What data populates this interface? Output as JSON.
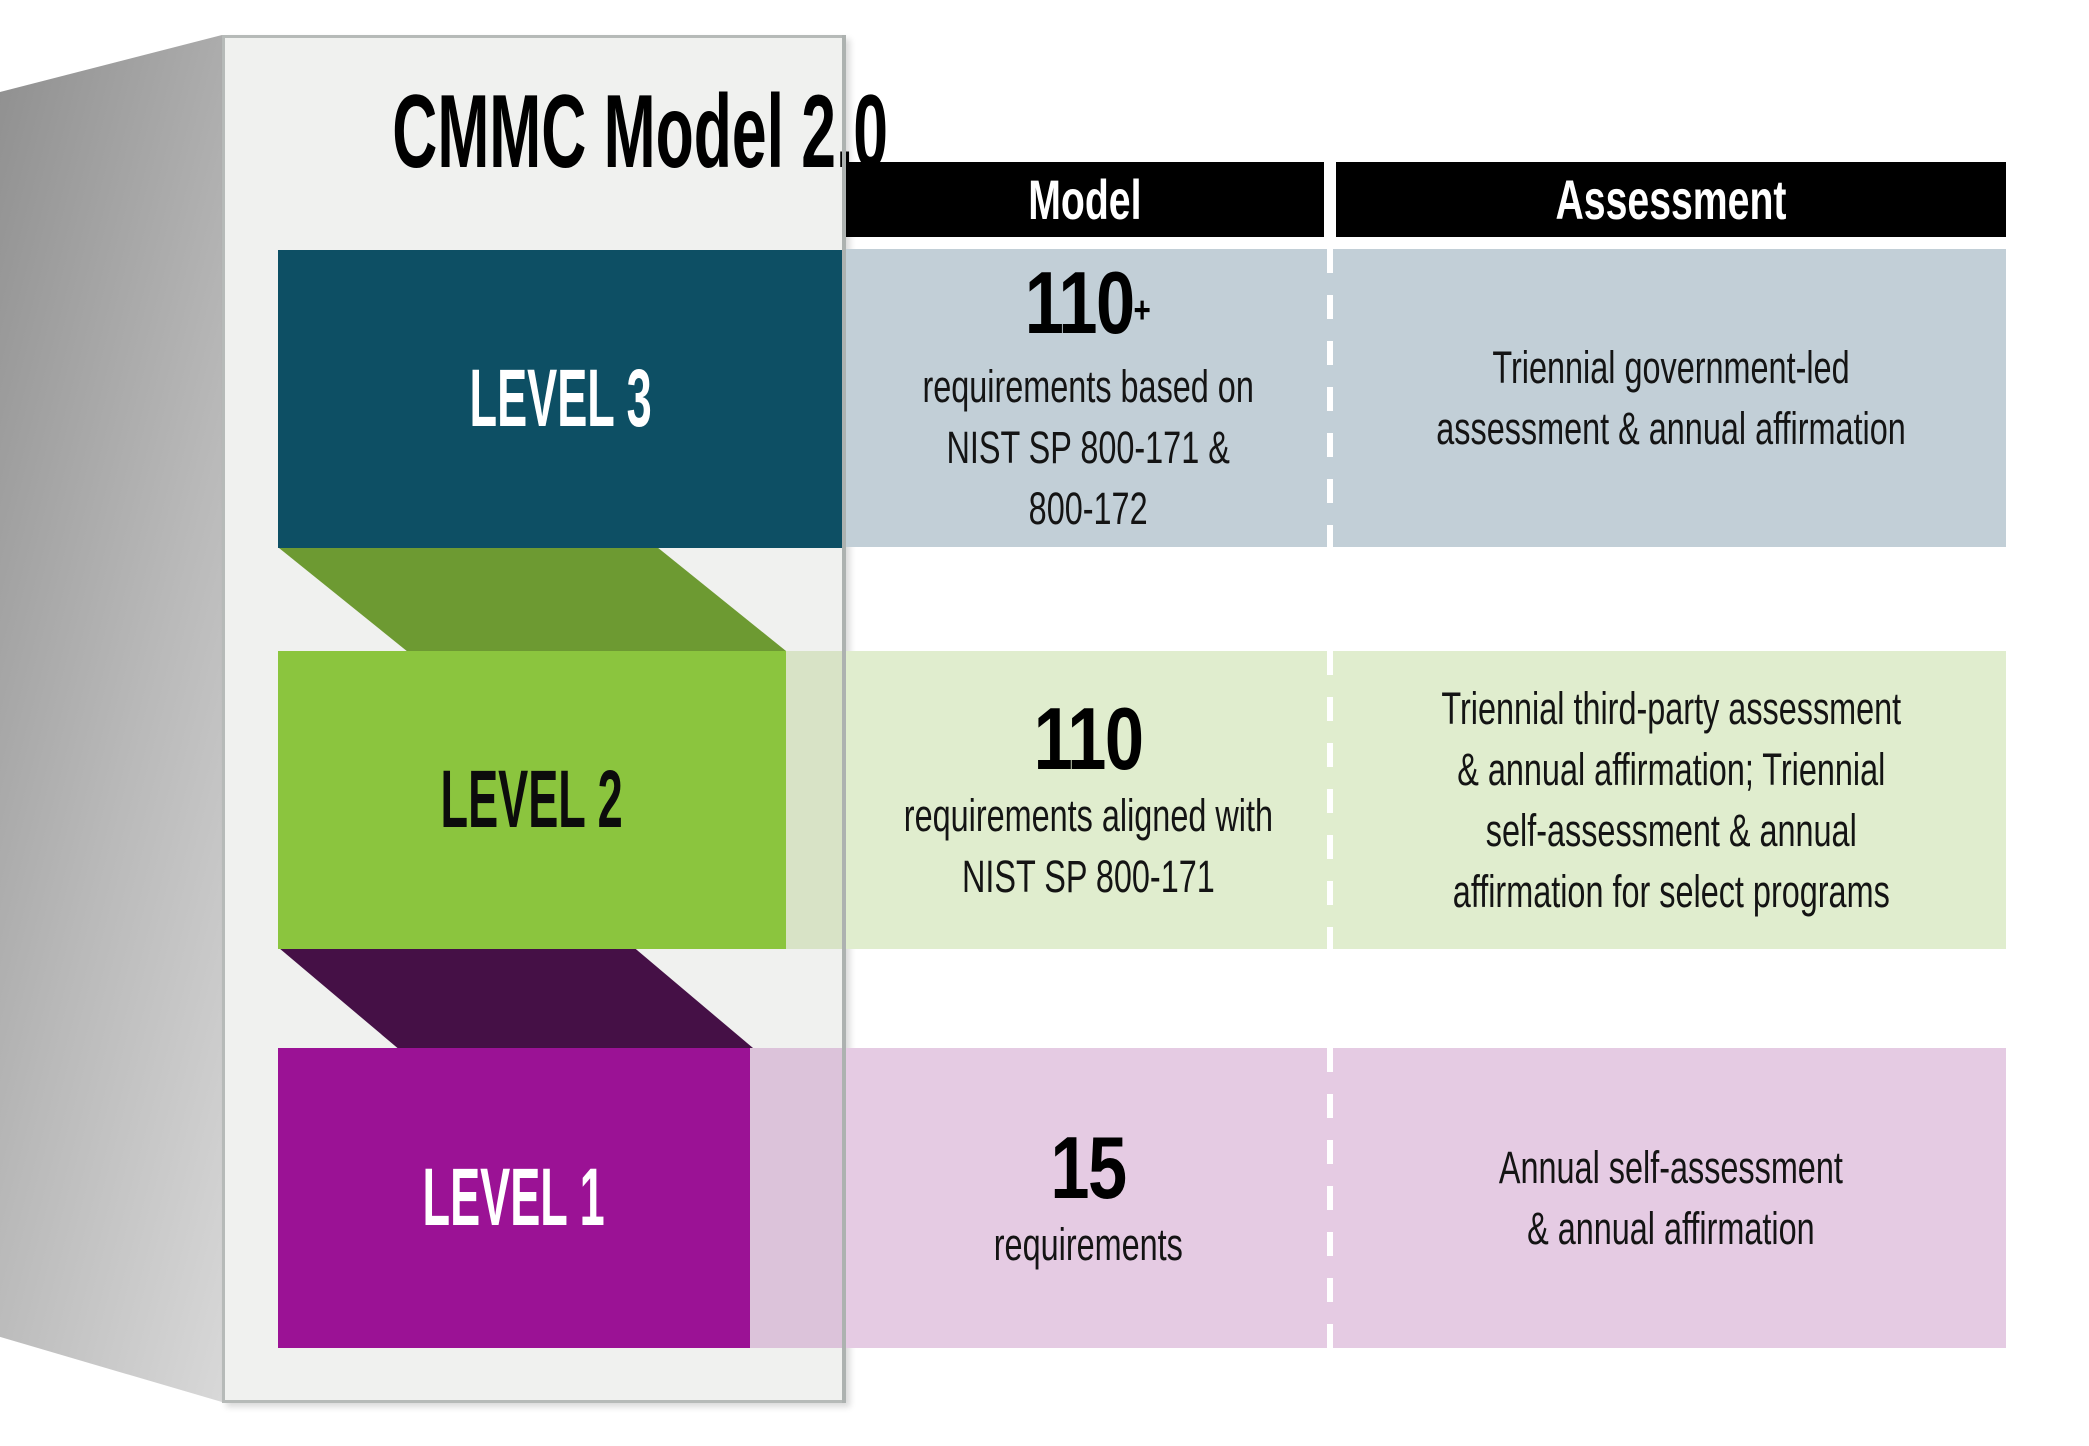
{
  "title": "CMMC Model 2.0",
  "header": {
    "model": "Model",
    "assessment": "Assessment"
  },
  "levels": [
    {
      "label": "LEVEL 3",
      "model": {
        "number": "110",
        "suffix": "+",
        "lines": [
          "requirements based on",
          "NIST SP 800-171 &",
          "800-172"
        ]
      },
      "assessment": {
        "lines": [
          "Triennial government-led",
          "assessment & annual affirmation"
        ]
      }
    },
    {
      "label": "LEVEL 2",
      "model": {
        "number": "110",
        "suffix": "",
        "lines": [
          "requirements aligned with",
          "NIST SP 800-171"
        ]
      },
      "assessment": {
        "lines": [
          "Triennial third-party assessment",
          "& annual affirmation; Triennial",
          "self-assessment & annual",
          "affirmation for select programs"
        ]
      }
    },
    {
      "label": "LEVEL 1",
      "model": {
        "number": "15",
        "suffix": "",
        "lines": [
          "requirements"
        ]
      },
      "assessment": {
        "lines": [
          "Annual self-assessment",
          "& annual affirmation"
        ]
      }
    }
  ],
  "colors": {
    "level3_band": "#0d4f64",
    "level2_band": "#8bc53e",
    "level1_band": "#9b1295",
    "fold_upper": "#6d9a32",
    "fold_lower": "#451046",
    "row_level3": "#c2cfd7",
    "row_level2": "#e0edce",
    "row_level1": "#e5cbe3",
    "header_bg": "#000000",
    "panel_bg": "#f0f1ef"
  }
}
